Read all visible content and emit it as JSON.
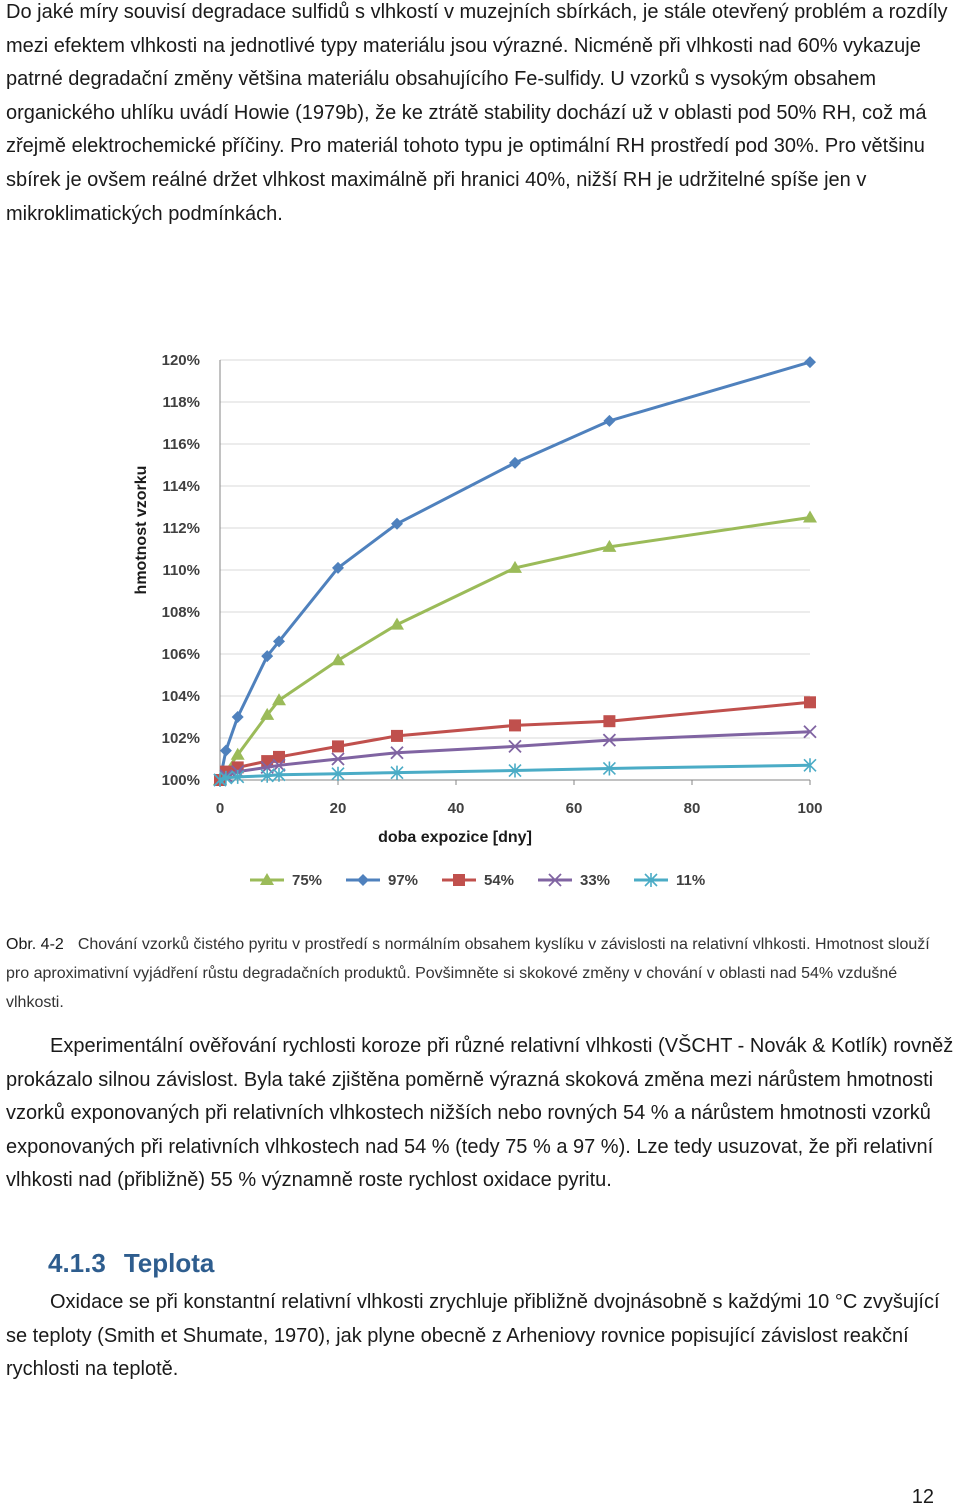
{
  "paragraph1": "Do jaké míry souvisí degradace sulfidů s vlhkostí v muzejních sbírkách, je stále otevřený problém a rozdíly mezi efektem vlhkosti na jednotlivé typy materiálu jsou výrazné. Nicméně při vlhkosti nad 60% vykazuje patrné degradační změny většina materiálu obsahujícího Fe-sulfidy. U vzorků s vysokým obsahem organického uhlíku uvádí Howie (1979b), že ke ztrátě stability dochází už v oblasti pod 50% RH, což má zřejmě elektrochemické příčiny. Pro materiál tohoto typu je optimální RH prostředí pod 30%. Pro většinu sbírek je ovšem reálné držet vlhkost maximálně při hranici 40%, nižší RH je udržitelné spíše jen v mikroklimatických podmínkách.",
  "chart_data": {
    "type": "line",
    "xlabel": "doba expozice [dny]",
    "ylabel": "hmotnost vzorku",
    "xlim": [
      0,
      100
    ],
    "ylim": [
      100,
      120
    ],
    "x_ticks": [
      "0",
      "20",
      "40",
      "60",
      "80",
      "100"
    ],
    "y_ticks": [
      "100%",
      "102%",
      "104%",
      "106%",
      "108%",
      "110%",
      "112%",
      "114%",
      "116%",
      "118%",
      "120%"
    ],
    "grid": "horizontal",
    "legend_position": "bottom",
    "series": [
      {
        "name": "75%",
        "color": "#9bbb59",
        "marker": "triangle",
        "points": [
          [
            0,
            100
          ],
          [
            3,
            101.2
          ],
          [
            8,
            103.1
          ],
          [
            10,
            103.8
          ],
          [
            20,
            105.7
          ],
          [
            30,
            107.4
          ],
          [
            50,
            110.1
          ],
          [
            66,
            111.1
          ],
          [
            100,
            112.5
          ]
        ]
      },
      {
        "name": "97%",
        "color": "#4f81bd",
        "marker": "diamond",
        "points": [
          [
            0,
            100
          ],
          [
            1,
            101.4
          ],
          [
            3,
            103
          ],
          [
            8,
            105.9
          ],
          [
            10,
            106.6
          ],
          [
            20,
            110.1
          ],
          [
            30,
            112.2
          ],
          [
            50,
            115.1
          ],
          [
            66,
            117.1
          ],
          [
            100,
            119.9
          ]
        ]
      },
      {
        "name": "54%",
        "color": "#c0504d",
        "marker": "square",
        "points": [
          [
            0,
            100
          ],
          [
            1,
            100.4
          ],
          [
            3,
            100.6
          ],
          [
            8,
            100.9
          ],
          [
            10,
            101.1
          ],
          [
            20,
            101.6
          ],
          [
            30,
            102.1
          ],
          [
            50,
            102.6
          ],
          [
            66,
            102.8
          ],
          [
            100,
            103.7
          ]
        ]
      },
      {
        "name": "33%",
        "color": "#8064a2",
        "marker": "x",
        "points": [
          [
            0,
            100
          ],
          [
            1,
            100.2
          ],
          [
            3,
            100.4
          ],
          [
            8,
            100.6
          ],
          [
            10,
            100.7
          ],
          [
            20,
            101
          ],
          [
            30,
            101.3
          ],
          [
            50,
            101.6
          ],
          [
            66,
            101.9
          ],
          [
            100,
            102.3
          ]
        ]
      },
      {
        "name": "11%",
        "color": "#4bacc6",
        "marker": "star",
        "points": [
          [
            0,
            100
          ],
          [
            1,
            100.1
          ],
          [
            3,
            100.15
          ],
          [
            8,
            100.2
          ],
          [
            10,
            100.25
          ],
          [
            20,
            100.3
          ],
          [
            30,
            100.35
          ],
          [
            50,
            100.45
          ],
          [
            66,
            100.55
          ],
          [
            100,
            100.7
          ]
        ]
      }
    ]
  },
  "caption": {
    "label": "Obr. 4-2",
    "text": "Chování vzorků čistého pyritu v prostředí s normálním obsahem kyslíku v závislosti na relativní vlhkosti. Hmotnost slouží pro aproximativní vyjádření růstu degradačních produktů. Povšimněte si skokové změny v chování v oblasti nad 54% vzdušné vlhkosti."
  },
  "paragraph2": "Experimentální ověřování rychlosti koroze při různé relativní vlhkosti (VŠCHT - Novák & Kotlík) rovněž prokázalo silnou závislost. Byla také zjištěna poměrně výrazná skoková změna mezi nárůstem hmotnosti vzorků exponovaných při relativních vlhkostech nižších nebo rovných 54 % a nárůstem hmotnosti vzorků exponovaných při relativních vlhkostech nad 54 % (tedy 75 % a 97 %). Lze tedy usuzovat, že při relativní vlhkosti nad (přibližně) 55 % významně roste rychlost oxidace pyritu.",
  "heading": {
    "number": "4.1.3",
    "title": "Teplota"
  },
  "paragraph3": "Oxidace se při konstantní relativní vlhkosti zrychluje přibližně dvojnásobně s každými 10 °C zvyšující se teploty (Smith et Shumate, 1970), jak plyne obecně z Arheniovy rovnice popisující závislost reakční rychlosti na teplotě.",
  "page_number": "12"
}
